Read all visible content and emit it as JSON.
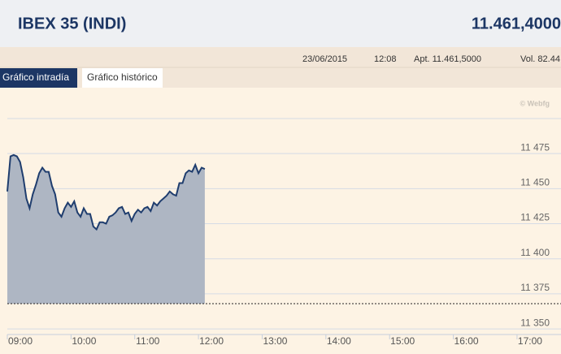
{
  "header": {
    "title": "IBEX 35 (INDI)",
    "value": "11.461,4000"
  },
  "info": {
    "date": "23/06/2015",
    "time": "12:08",
    "apt": "Apt. 11.461,5000",
    "vol": "Vol. 82.44"
  },
  "tabs": [
    "Gráfico intradía",
    "Gráfico histórico"
  ],
  "credit": "© Webfg",
  "chart_data": {
    "type": "area",
    "x": [
      9,
      9.05,
      9.1,
      9.15,
      9.2,
      9.25,
      9.3,
      9.35,
      9.4,
      9.45,
      9.5,
      9.55,
      9.6,
      9.65,
      9.7,
      9.75,
      9.8,
      9.85,
      9.9,
      9.95,
      10,
      10.05,
      10.1,
      10.15,
      10.2,
      10.25,
      10.3,
      10.35,
      10.4,
      10.45,
      10.5,
      10.55,
      10.6,
      10.65,
      10.7,
      10.75,
      10.8,
      10.85,
      10.9,
      10.95,
      11,
      11.05,
      11.1,
      11.15,
      11.2,
      11.25,
      11.3,
      11.35,
      11.4,
      11.45,
      11.5,
      11.55,
      11.6,
      11.65,
      11.7,
      11.75,
      11.8,
      11.85,
      11.9,
      11.95,
      12,
      12.05,
      12.1
    ],
    "values": [
      11448,
      11473,
      11474,
      11473,
      11469,
      11458,
      11443,
      11436,
      11446,
      11453,
      11461,
      11465,
      11462,
      11462,
      11452,
      11446,
      11433,
      11430,
      11436,
      11440,
      11437,
      11441,
      11433,
      11430,
      11436,
      11432,
      11432,
      11423,
      11421,
      11426,
      11426,
      11425,
      11430,
      11431,
      11433,
      11436,
      11437,
      11432,
      11433,
      11427,
      11432,
      11435,
      11433,
      11436,
      11437,
      11434,
      11440,
      11438,
      11441,
      11443,
      11445,
      11448,
      11446,
      11445,
      11454,
      11454,
      11461,
      11463,
      11462,
      11467,
      11461,
      11465,
      11464
    ],
    "color": "#1f3d6e",
    "fill": "#aeb6c3",
    "reference_line": 11368,
    "xlim": [
      9,
      17.69
    ],
    "xticks": [
      {
        "value": 9,
        "label": "09:00"
      },
      {
        "value": 10,
        "label": "10:00"
      },
      {
        "value": 11,
        "label": "11:00"
      },
      {
        "value": 12,
        "label": "12:00"
      },
      {
        "value": 13,
        "label": "13:00"
      },
      {
        "value": 14,
        "label": "14:00"
      },
      {
        "value": 15,
        "label": "15:00"
      },
      {
        "value": 16,
        "label": "16:00"
      },
      {
        "value": 17,
        "label": "17:00"
      }
    ],
    "ylim": [
      11346,
      11500
    ],
    "yticks": [
      {
        "value": 11350,
        "label": "11 350"
      },
      {
        "value": 11375,
        "label": "11 375"
      },
      {
        "value": 11400,
        "label": "11 400"
      },
      {
        "value": 11425,
        "label": "11 425"
      },
      {
        "value": 11450,
        "label": "11 450"
      },
      {
        "value": 11475,
        "label": "11 475"
      }
    ],
    "grid": true
  }
}
